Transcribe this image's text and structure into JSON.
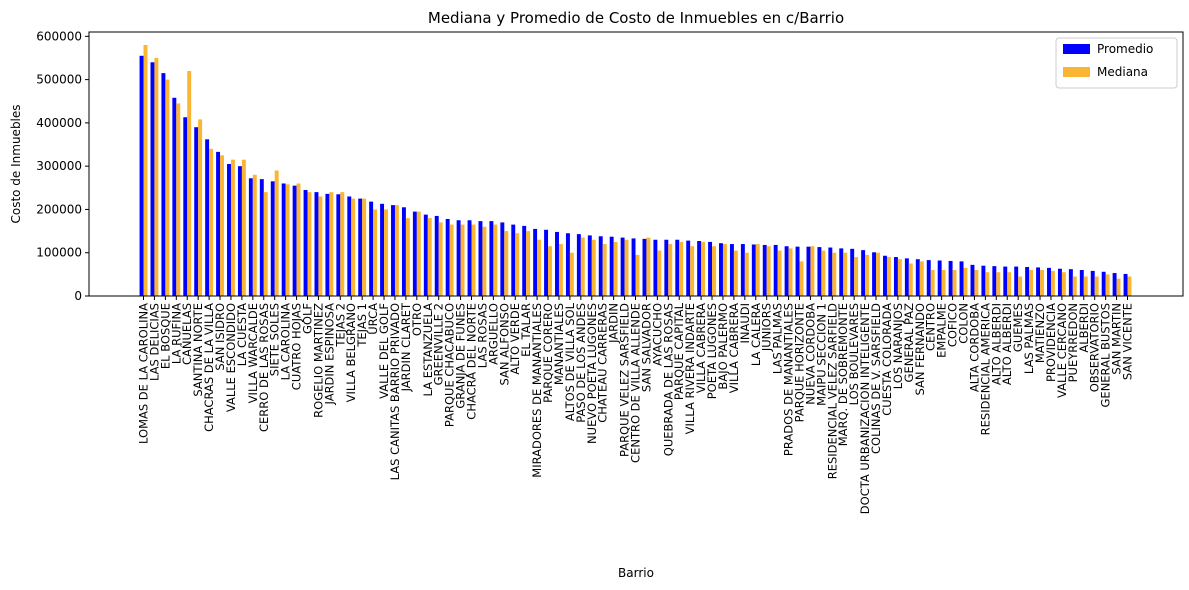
{
  "chart_data": {
    "type": "bar",
    "title": "Mediana y Promedio de Costo de Inmuebles en c/Barrio",
    "xlabel": "Barrio",
    "ylabel": "Costo de Inmuebles",
    "ylim": [
      0,
      610000
    ],
    "yticks": [
      0,
      100000,
      200000,
      300000,
      400000,
      500000,
      600000
    ],
    "legend_position": "top-right",
    "categories": [
      "LOMAS DE LA CAROLINA",
      "LAS DELICIAS",
      "EL BOSQUE",
      "LA RUFINA",
      "CAÑUELAS",
      "SANTINA NORTE",
      "CHACRAS DE LA VILLA",
      "SAN ISIDRO",
      "VALLE ESCONDIDO",
      "LA CUESTA",
      "VILLA WARCALDE",
      "CERRO DE LAS ROSAS",
      "SIETE SOLES",
      "LA CAROLINA",
      "CUATRO HOJAS",
      "GOLF",
      "ROGELIO MARTINEZ",
      "JARDIN ESPINOSA",
      "TEJAS 2",
      "VILLA BELGRANO",
      "TEJAS 1",
      "URCA",
      "VALLE DEL GOLF",
      "LAS CANITAS BARRIO PRIVADO",
      "JARDIN CLARET",
      "OTRO",
      "LA ESTANZUELA",
      "GREENVILLE 2",
      "PARQUE CHACABUCO",
      "GRANJA DE FUNES",
      "CHACRA DEL NORTE",
      "LAS ROSAS",
      "ARGUELLO",
      "SAN ALFONSO",
      "ALTO VERDE",
      "EL TALAR",
      "MIRADORES DE MANANTIALES",
      "PARQUE CORERO",
      "MANANTIALES",
      "ALTOS DE VILLA SOL",
      "PASO DE LOS ANDES",
      "NUEVO POETA LUGONES",
      "CHATEAU CARRERAS",
      "JARDIN",
      "PARQUE VELEZ SARSFIELD",
      "CENTRO DE VILLA ALLENDE",
      "SAN SALVADOR",
      "AYACUCHO",
      "QUEBRADA DE LAS ROSAS",
      "PARQUE CAPITAL",
      "VILLA RIVERA INDARTE",
      "VILLA CABRERA",
      "POETA LUGONES",
      "BAJO PALERMO",
      "VILLA CABRERA",
      "INAUDI",
      "LA CALERA",
      "JUNIORS",
      "LAS PALMAS",
      "PRADOS DE MANANTIALES",
      "PARQUE HORIZONTE",
      "NUEVA CORDOBA",
      "MAIPU SECCION 1",
      "RESIDENCIAL VELEZ SARFIELD",
      "MARQ. DE SOBREMONTE",
      "LOS BOULEVARES",
      "DOCTA URBANIZACION INTELIGENTE",
      "COLINAS DE V. SARSFIELD",
      "CUESTA COLORADA",
      "LOS NARANJOS",
      "GENERAL PAZ",
      "SAN FERNANDO",
      "CENTRO",
      "EMPALME",
      "COFICO",
      "COLON",
      "ALTA CORDOBA",
      "RESIDENCIAL AMERICA",
      "ALTO ALBERDI",
      "ALTO ALBERDI",
      "GUEMES",
      "LAS PALMAS",
      "MATIENZO",
      "PROVIDENCIA",
      "VALLE CERCANO",
      "PUEYRREDON",
      "ALBERDI",
      "OBSERVATORIO",
      "GENERAL BUSTOS",
      "SAN MARTIN",
      "SAN VICENTE"
    ],
    "series": [
      {
        "name": "Promedio",
        "color": "#0000ff",
        "values": [
          555000,
          540000,
          515000,
          458000,
          413000,
          390000,
          362000,
          333000,
          305000,
          300000,
          272000,
          270000,
          265000,
          260000,
          255000,
          245000,
          240000,
          236000,
          235000,
          230000,
          225000,
          218000,
          213000,
          210000,
          205000,
          195000,
          188000,
          185000,
          178000,
          175000,
          175000,
          173000,
          173000,
          170000,
          165000,
          162000,
          155000,
          153000,
          148000,
          145000,
          143000,
          140000,
          138000,
          137000,
          135000,
          133000,
          132000,
          130000,
          130000,
          130000,
          128000,
          127000,
          125000,
          122000,
          120000,
          120000,
          119000,
          118000,
          118000,
          115000,
          114000,
          114000,
          113000,
          112000,
          110000,
          109000,
          106000,
          101000,
          93000,
          90000,
          87000,
          85000,
          83000,
          82000,
          81000,
          80000,
          72000,
          70000,
          69000,
          68000,
          68000,
          67000,
          66000,
          65000,
          63000,
          62000,
          60000,
          58000,
          56000,
          53000,
          51000
        ]
      },
      {
        "name": "Mediana",
        "color": "#fbb534",
        "values": [
          580000,
          550000,
          500000,
          445000,
          520000,
          408000,
          340000,
          325000,
          315000,
          315000,
          280000,
          240000,
          290000,
          258000,
          260000,
          240000,
          230000,
          240000,
          240000,
          225000,
          225000,
          200000,
          200000,
          210000,
          180000,
          195000,
          180000,
          170000,
          165000,
          165000,
          165000,
          160000,
          165000,
          150000,
          145000,
          150000,
          130000,
          115000,
          120000,
          100000,
          135000,
          130000,
          120000,
          125000,
          130000,
          95000,
          135000,
          105000,
          120000,
          125000,
          115000,
          125000,
          115000,
          120000,
          105000,
          100000,
          120000,
          115000,
          105000,
          110000,
          80000,
          115000,
          105000,
          100000,
          100000,
          90000,
          95000,
          100000,
          90000,
          85000,
          75000,
          80000,
          60000,
          60000,
          60000,
          65000,
          60000,
          55000,
          55000,
          55000,
          45000,
          60000,
          60000,
          58000,
          55000,
          45000,
          45000,
          45000,
          50000,
          40000,
          45000
        ]
      }
    ]
  }
}
